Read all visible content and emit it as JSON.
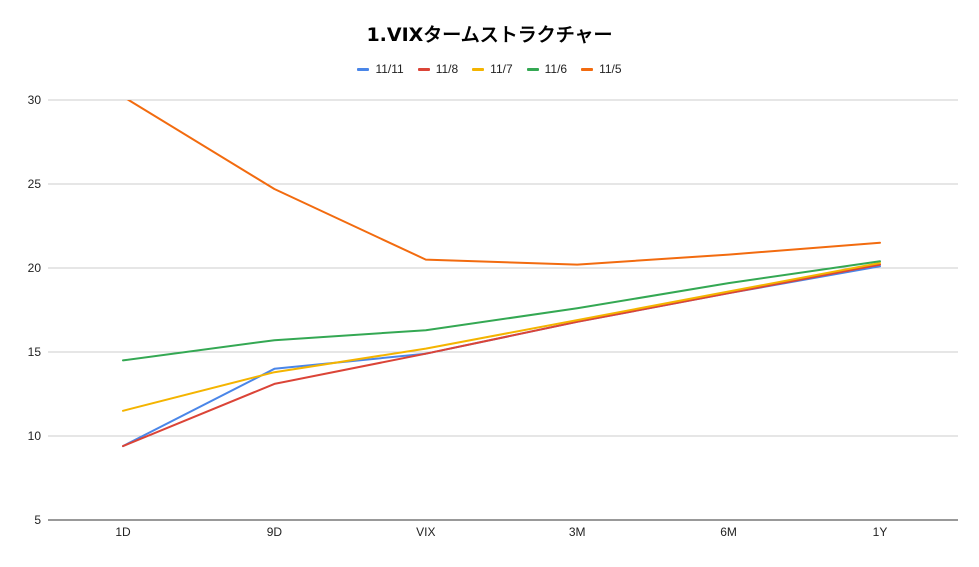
{
  "chart_data": {
    "type": "line",
    "title": "1.VIXタームストラクチャー",
    "categories": [
      "1D",
      "9D",
      "VIX",
      "3M",
      "6M",
      "1Y"
    ],
    "xlabel": "",
    "ylabel": "",
    "ylim": [
      5,
      30
    ],
    "yticks": [
      5,
      10,
      15,
      20,
      25,
      30
    ],
    "grid": true,
    "legend_position": "top",
    "series": [
      {
        "name": "11/11",
        "color": "#4a86e8",
        "values": [
          9.4,
          14.0,
          14.9,
          16.8,
          18.5,
          20.1
        ]
      },
      {
        "name": "11/8",
        "color": "#db4437",
        "values": [
          9.4,
          13.1,
          14.9,
          16.8,
          18.5,
          20.2
        ]
      },
      {
        "name": "11/7",
        "color": "#f4b400",
        "values": [
          11.5,
          13.8,
          15.2,
          16.9,
          18.6,
          20.3
        ]
      },
      {
        "name": "11/6",
        "color": "#34a853",
        "values": [
          14.5,
          15.7,
          16.3,
          17.6,
          19.1,
          20.4
        ]
      },
      {
        "name": "11/5",
        "color": "#f26b0f",
        "values": [
          30.2,
          24.7,
          20.5,
          20.2,
          20.8,
          21.5
        ]
      }
    ]
  }
}
